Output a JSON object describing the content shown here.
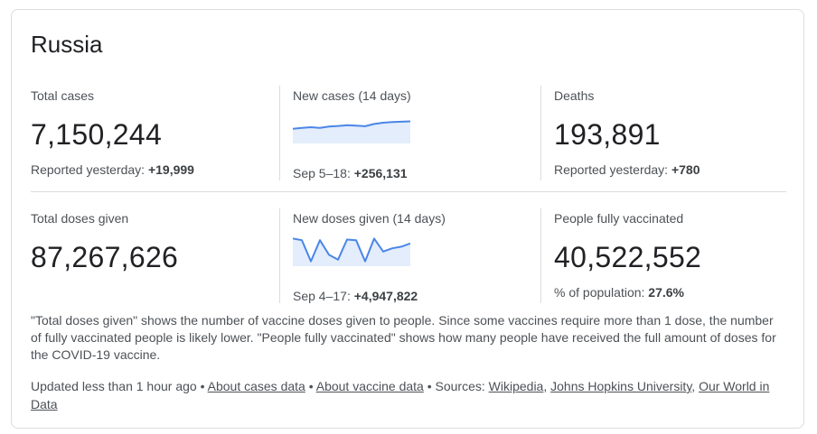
{
  "title": "Russia",
  "cases": {
    "total": {
      "label": "Total cases",
      "value": "7,150,244",
      "sub_prefix": "Reported yesterday: ",
      "sub_value": "+19,999"
    },
    "new": {
      "label": "New cases (14 days)",
      "sub_prefix": "Sep 5–18: ",
      "sub_value": "+256,131",
      "spark": [
        0.55,
        0.52,
        0.5,
        0.52,
        0.48,
        0.46,
        0.44,
        0.45,
        0.47,
        0.4,
        0.36,
        0.34,
        0.33,
        0.32
      ]
    },
    "deaths": {
      "label": "Deaths",
      "value": "193,891",
      "sub_prefix": "Reported yesterday: ",
      "sub_value": "+780"
    }
  },
  "vaccine": {
    "total": {
      "label": "Total doses given",
      "value": "87,267,626"
    },
    "new": {
      "label": "New doses given (14 days)",
      "sub_prefix": "Sep 4–17: ",
      "sub_value": "+4,947,822",
      "spark": [
        0.15,
        0.2,
        0.85,
        0.2,
        0.65,
        0.8,
        0.18,
        0.2,
        0.85,
        0.15,
        0.55,
        0.45,
        0.4,
        0.3
      ]
    },
    "full": {
      "label": "People fully vaccinated",
      "value": "40,522,552",
      "sub_prefix": "% of population: ",
      "sub_value": "27.6%"
    }
  },
  "note": "\"Total doses given\" shows the number of vaccine doses given to people. Since some vaccines require more than 1 dose, the number of fully vaccinated people is likely lower. \"People fully vaccinated\" shows how many people have received the full amount of doses for the COVID-19 vaccine.",
  "footer": {
    "updated": "Updated less than 1 hour ago",
    "sep": " • ",
    "about_cases": "About cases data",
    "about_vaccine": "About vaccine data",
    "sources_label": "Sources: ",
    "src1": "Wikipedia",
    "comma": ", ",
    "src2": "Johns Hopkins University",
    "src3": "Our World in Data"
  },
  "colors": {
    "spark_line": "#4a86e8",
    "spark_fill": "#e3edfc"
  }
}
